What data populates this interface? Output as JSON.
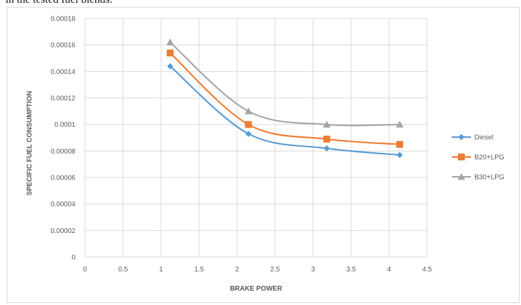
{
  "caption": "in the tested fuel blends.",
  "chart_data": {
    "type": "line",
    "title": "",
    "xlabel": "BRAKE POWER",
    "ylabel": "SPECIFIC FUEL CONSUMPTION",
    "xlim": [
      0,
      4.5
    ],
    "ylim": [
      0,
      0.00018
    ],
    "x_ticks": [
      "0",
      "0.5",
      "1",
      "1.5",
      "2",
      "2.5",
      "3",
      "3.5",
      "4",
      "4.5"
    ],
    "y_ticks": [
      "0",
      "0.00002",
      "0.00004",
      "0.00006",
      "0.00008",
      "0.0001",
      "0.00012",
      "0.00014",
      "0.00016",
      "0.00018"
    ],
    "grid": true,
    "smooth": true,
    "legend_position": "right",
    "series": [
      {
        "name": "Diesel",
        "color": "#5b9bd5",
        "marker": "diamond",
        "x": [
          1.12,
          2.15,
          3.18,
          4.14
        ],
        "y": [
          0.000144,
          9.3e-05,
          8.2e-05,
          7.7e-05
        ]
      },
      {
        "name": "B20+LPG",
        "color": "#ed7d31",
        "marker": "square",
        "x": [
          1.12,
          2.15,
          3.18,
          4.14
        ],
        "y": [
          0.000154,
          0.0001,
          8.9e-05,
          8.5e-05
        ]
      },
      {
        "name": "B30+LPG",
        "color": "#a5a5a5",
        "marker": "triangle",
        "x": [
          1.12,
          2.15,
          3.18,
          4.14
        ],
        "y": [
          0.000162,
          0.00011,
          0.0001,
          0.0001
        ]
      }
    ]
  }
}
